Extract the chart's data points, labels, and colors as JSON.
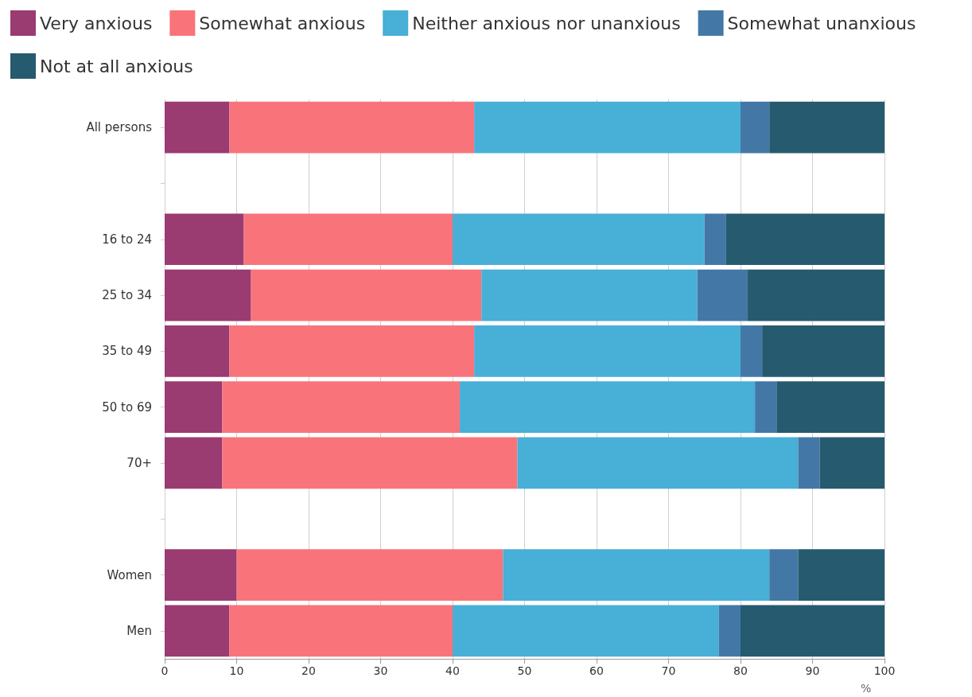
{
  "chart_data": {
    "type": "bar",
    "orientation": "horizontal",
    "stacked": true,
    "xlabel": "%",
    "legend": "top left",
    "grid": "x",
    "categories": [
      "All persons",
      null,
      "16 to 24",
      "25 to 34",
      "35 to 49",
      "50 to 69",
      "70+",
      null,
      "Women",
      "Men"
    ],
    "xlim": [
      0,
      100
    ],
    "xticks": [
      0,
      10,
      20,
      30,
      40,
      50,
      60,
      70,
      80,
      90,
      100
    ],
    "series": [
      {
        "name": "Very anxious",
        "color": "#9a3b71",
        "values": [
          9,
          null,
          11,
          12,
          9,
          8,
          8,
          null,
          10,
          9
        ]
      },
      {
        "name": "Somewhat anxious",
        "color": "#f8747a",
        "values": [
          34,
          null,
          29,
          32,
          34,
          33,
          41,
          null,
          37,
          31
        ]
      },
      {
        "name": "Neither anxious nor unanxious",
        "color": "#48afd6",
        "values": [
          37,
          null,
          35,
          30,
          37,
          41,
          39,
          null,
          37,
          37
        ]
      },
      {
        "name": "Somewhat unanxious",
        "color": "#4378a6",
        "values": [
          4,
          null,
          3,
          7,
          3,
          3,
          3,
          null,
          4,
          3
        ]
      },
      {
        "name": "Not at all anxious",
        "color": "#265a6f",
        "values": [
          16,
          null,
          22,
          19,
          17,
          15,
          9,
          null,
          12,
          20
        ]
      }
    ]
  }
}
